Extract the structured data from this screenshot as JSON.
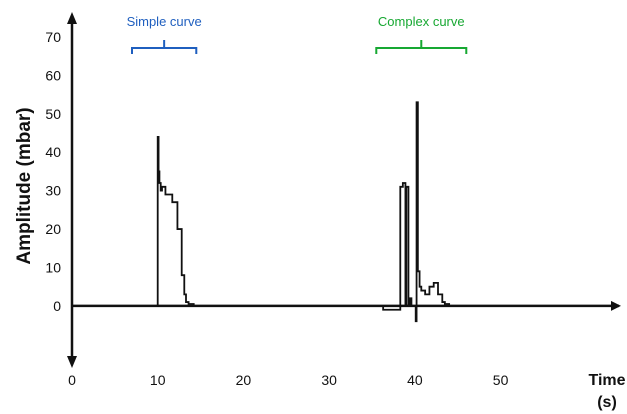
{
  "chart_data": {
    "type": "line",
    "title": "",
    "xlabel": "Time",
    "xlabel_unit": "(s)",
    "ylabel": "Amplitude  (mbar)",
    "xlim": [
      0,
      63
    ],
    "ylim": [
      -12,
      70
    ],
    "x_ticks": [
      0,
      10,
      20,
      30,
      40,
      50
    ],
    "y_ticks": [
      0,
      10,
      20,
      30,
      40,
      50,
      60,
      70
    ],
    "grid": false,
    "line_color": "#111111",
    "series": [
      {
        "x": [
          0,
          10.0,
          10.0,
          10.1,
          10.1,
          10.2,
          10.2,
          10.35,
          10.35,
          10.5,
          10.5,
          10.9,
          10.9,
          11.7,
          11.7,
          12.3,
          12.3,
          12.8,
          12.8,
          13.1,
          13.1,
          13.3,
          13.3,
          13.6,
          13.6,
          14.2,
          14.2,
          36.3,
          36.3,
          38.3,
          38.3,
          38.6,
          38.6,
          38.9,
          38.9,
          39.0,
          39.0,
          39.25,
          39.25,
          39.4,
          39.4,
          39.6,
          39.6,
          40.1,
          40.1,
          40.2,
          40.2,
          40.35,
          40.35,
          40.55,
          40.55,
          40.75,
          40.75,
          41.2,
          41.2,
          41.7,
          41.7,
          42.2,
          42.2,
          42.7,
          42.7,
          43.2,
          43.2,
          43.5,
          43.5,
          44.0,
          44.0,
          46.0
        ],
        "y": [
          0,
          0,
          44,
          44,
          35,
          35,
          32,
          32,
          30,
          30,
          31,
          31,
          29,
          29,
          27,
          27,
          20,
          20,
          8,
          8,
          3,
          3,
          1,
          1,
          0.5,
          0.5,
          0,
          0,
          -1,
          -1,
          31,
          31,
          32,
          32,
          0,
          0,
          31,
          31,
          0,
          0,
          2,
          2,
          0,
          0,
          -4,
          -4,
          53,
          53,
          9,
          9,
          5,
          5,
          4,
          4,
          3,
          3,
          5,
          5,
          6,
          6,
          3,
          3,
          1,
          1,
          0.5,
          0.5,
          0,
          0
        ]
      }
    ],
    "annotations": [
      {
        "text": "Simple curve",
        "x_range": [
          7,
          14.5
        ],
        "color": "#1f5fbf"
      },
      {
        "text": "Complex curve",
        "x_range": [
          35.5,
          46
        ],
        "color": "#17a832"
      }
    ]
  }
}
